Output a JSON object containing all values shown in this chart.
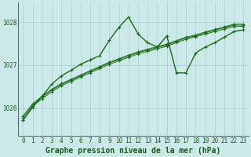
{
  "bg_color": "#cde8e8",
  "line_color": "#1a6e1a",
  "grid_color": "#b0cccc",
  "xlabel": "Graphe pression niveau de la mer (hPa)",
  "xlabel_fontsize": 7,
  "xlabel_color": "#1a5c1a",
  "ylabel_ticks": [
    1026,
    1027,
    1028
  ],
  "xlim": [
    -0.5,
    23.5
  ],
  "ylim": [
    1025.35,
    1028.45
  ],
  "xticks": [
    0,
    1,
    2,
    3,
    4,
    5,
    6,
    7,
    8,
    9,
    10,
    11,
    12,
    13,
    14,
    15,
    16,
    17,
    18,
    19,
    20,
    21,
    22,
    23
  ],
  "main_series": [
    1025.72,
    1026.02,
    1026.28,
    1026.56,
    1026.75,
    1026.88,
    1027.02,
    1027.12,
    1027.22,
    1027.58,
    1027.88,
    1028.12,
    1027.72,
    1027.52,
    1027.42,
    1027.68,
    1026.82,
    1026.82,
    1027.28,
    1027.42,
    1027.52,
    1027.65,
    1027.78,
    1027.82
  ],
  "base1": [
    1025.72,
    1026.05,
    1026.22,
    1026.38,
    1026.52,
    1026.62,
    1026.72,
    1026.82,
    1026.92,
    1027.02,
    1027.1,
    1027.18,
    1027.26,
    1027.32,
    1027.38,
    1027.44,
    1027.52,
    1027.6,
    1027.66,
    1027.72,
    1027.78,
    1027.84,
    1027.9,
    1027.9
  ],
  "base2": [
    1025.78,
    1026.08,
    1026.26,
    1026.42,
    1026.55,
    1026.65,
    1026.75,
    1026.85,
    1026.95,
    1027.05,
    1027.13,
    1027.21,
    1027.29,
    1027.35,
    1027.41,
    1027.47,
    1027.55,
    1027.63,
    1027.68,
    1027.75,
    1027.81,
    1027.87,
    1027.93,
    1027.93
  ],
  "base3": [
    1025.82,
    1026.1,
    1026.28,
    1026.44,
    1026.57,
    1026.67,
    1026.77,
    1026.87,
    1026.97,
    1027.07,
    1027.15,
    1027.23,
    1027.31,
    1027.37,
    1027.43,
    1027.49,
    1027.57,
    1027.65,
    1027.7,
    1027.77,
    1027.83,
    1027.89,
    1027.95,
    1027.95
  ],
  "marker": "+",
  "marker_size": 3,
  "lw_main": 1.0,
  "lw_base": 0.7,
  "tick_fontsize": 5.5,
  "tick_color": "#1a5c1a"
}
